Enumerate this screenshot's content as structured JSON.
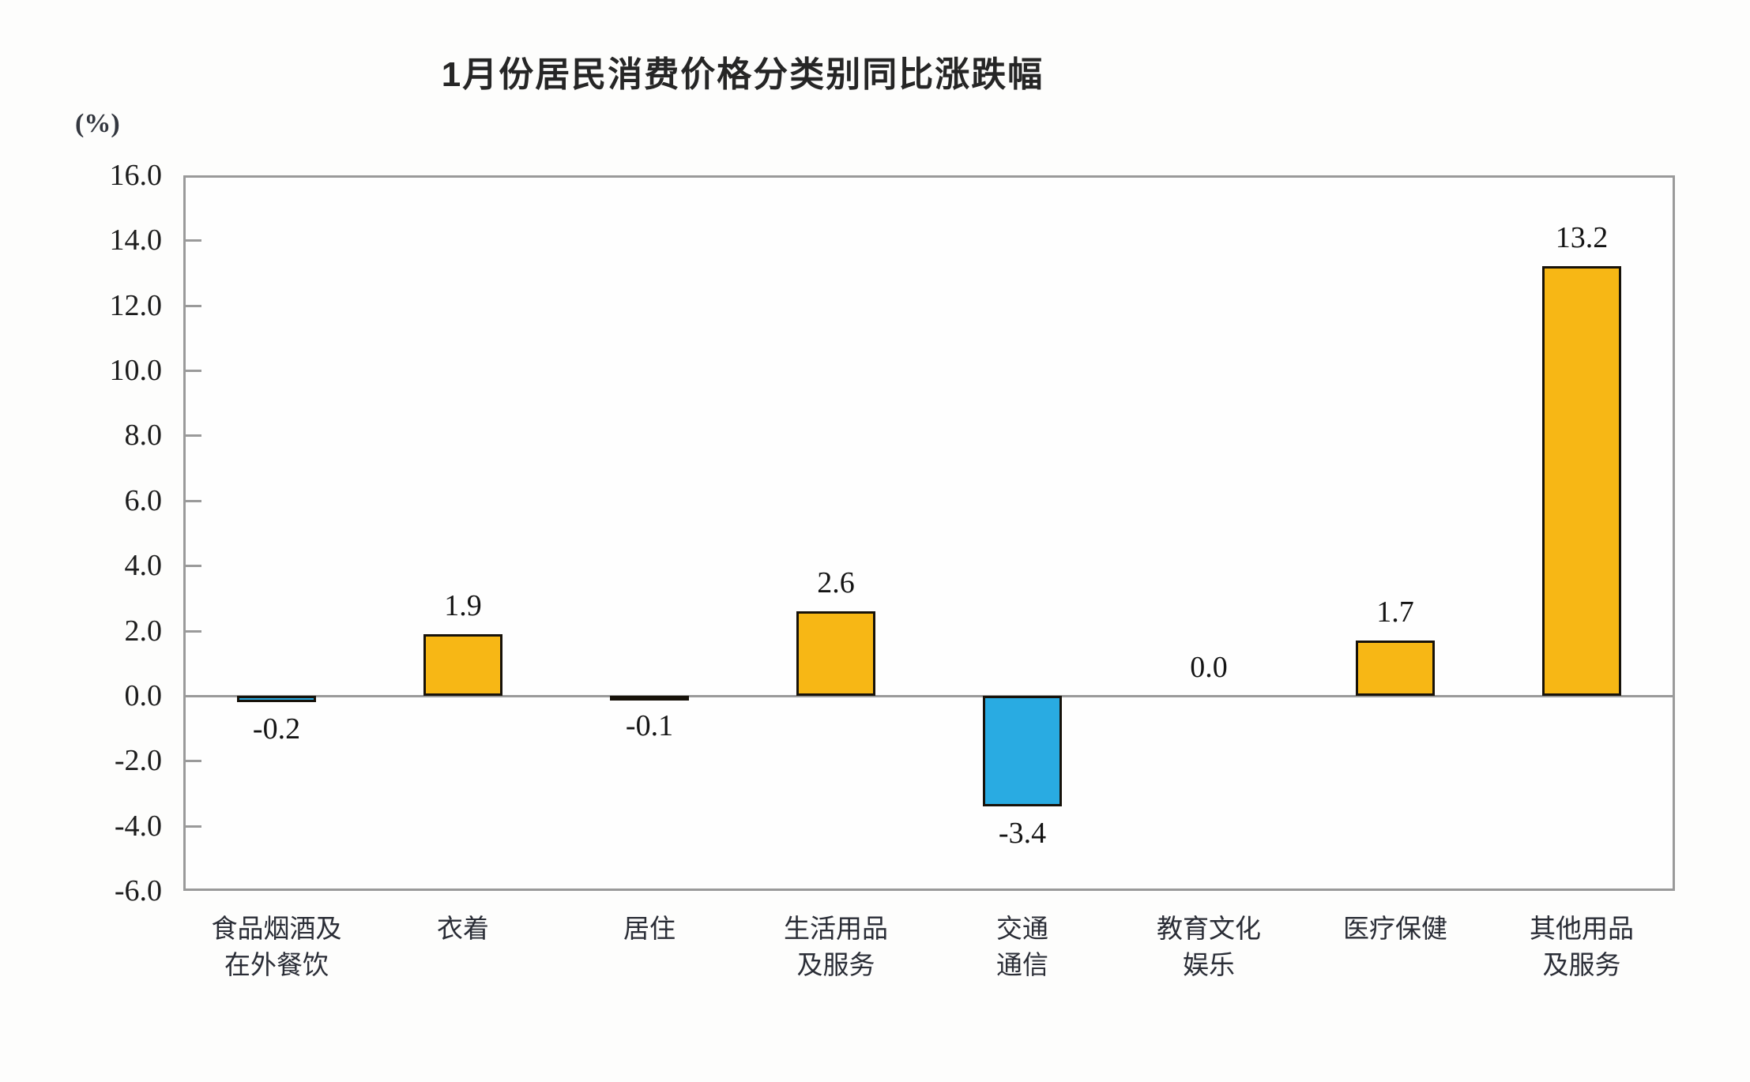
{
  "chart_data": {
    "type": "bar",
    "title": "1月份居民消费价格分类别同比涨跌幅",
    "unit": "(%)",
    "categories": [
      "食品烟酒及\n在外餐饮",
      "衣着",
      "居住",
      "生活用品\n及服务",
      "交通\n通信",
      "教育文化\n娱乐",
      "医疗保健",
      "其他用品\n及服务"
    ],
    "values": [
      -0.2,
      1.9,
      -0.1,
      2.6,
      -3.4,
      0.0,
      1.7,
      13.2
    ],
    "data_labels": [
      "-0.2",
      "1.9",
      "-0.1",
      "2.6",
      "-3.4",
      "0.0",
      "1.7",
      "13.2"
    ],
    "ylim": [
      -6.0,
      16.0
    ],
    "ytick_step": 2.0,
    "ytick_labels": [
      "16.0",
      "14.0",
      "12.0",
      "10.0",
      "8.0",
      "6.0",
      "4.0",
      "2.0",
      "0.0",
      "-2.0",
      "-4.0",
      "-6.0"
    ],
    "grid": false,
    "legend": "none",
    "colors": {
      "positive_bar": "#F7B715",
      "negative_bar": "#29ABE2",
      "bar_border": "#17120A",
      "axis_frame": "#9A9A9A",
      "text": "#1C1C1C"
    }
  }
}
